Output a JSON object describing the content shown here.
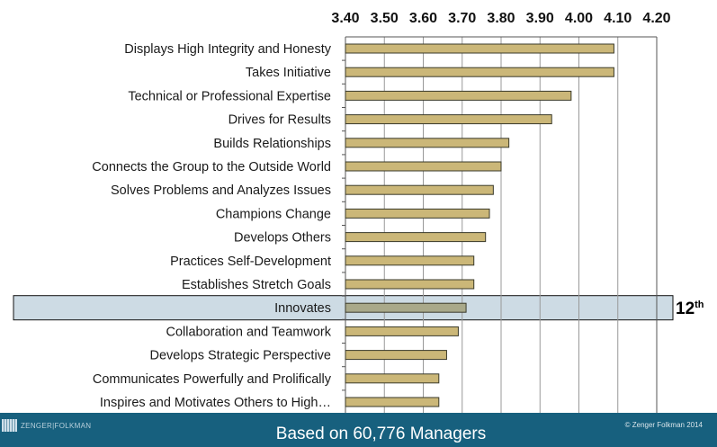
{
  "chart_data": {
    "type": "bar",
    "orientation": "horizontal",
    "categories": [
      "Displays High Integrity and Honesty",
      "Takes Initiative",
      "Technical or Professional Expertise",
      "Drives for Results",
      "Builds Relationships",
      "Connects the Group to the Outside World",
      "Solves Problems and Analyzes Issues",
      "Champions Change",
      "Develops Others",
      "Practices Self-Development",
      "Establishes Stretch Goals",
      "Innovates",
      "Collaboration and Teamwork",
      "Develops Strategic Perspective",
      "Communicates Powerfully and Prolifically",
      "Inspires and Motivates Others to High…"
    ],
    "values": [
      4.09,
      4.09,
      3.98,
      3.93,
      3.82,
      3.8,
      3.78,
      3.77,
      3.76,
      3.73,
      3.73,
      3.71,
      3.69,
      3.66,
      3.64,
      3.64
    ],
    "xlim": [
      3.4,
      4.2
    ],
    "ticks": [
      "3.40",
      "3.50",
      "3.60",
      "3.70",
      "3.80",
      "3.90",
      "4.00",
      "4.10",
      "4.20"
    ],
    "axis_position": "top",
    "grid": true,
    "highlight": {
      "category": "Innovates",
      "rank": "12",
      "rank_suffix": "th"
    },
    "colors": {
      "bar": "#cbb778",
      "highlight_band": "#cddbe4",
      "highlight_bar": "#a9a98a",
      "footer": "#17607e"
    }
  },
  "footer": {
    "brand": "ZENGER|FOLKMAN",
    "caption": "Based on 60,776 Managers",
    "copyright": "© Zenger Folkman 2014"
  }
}
